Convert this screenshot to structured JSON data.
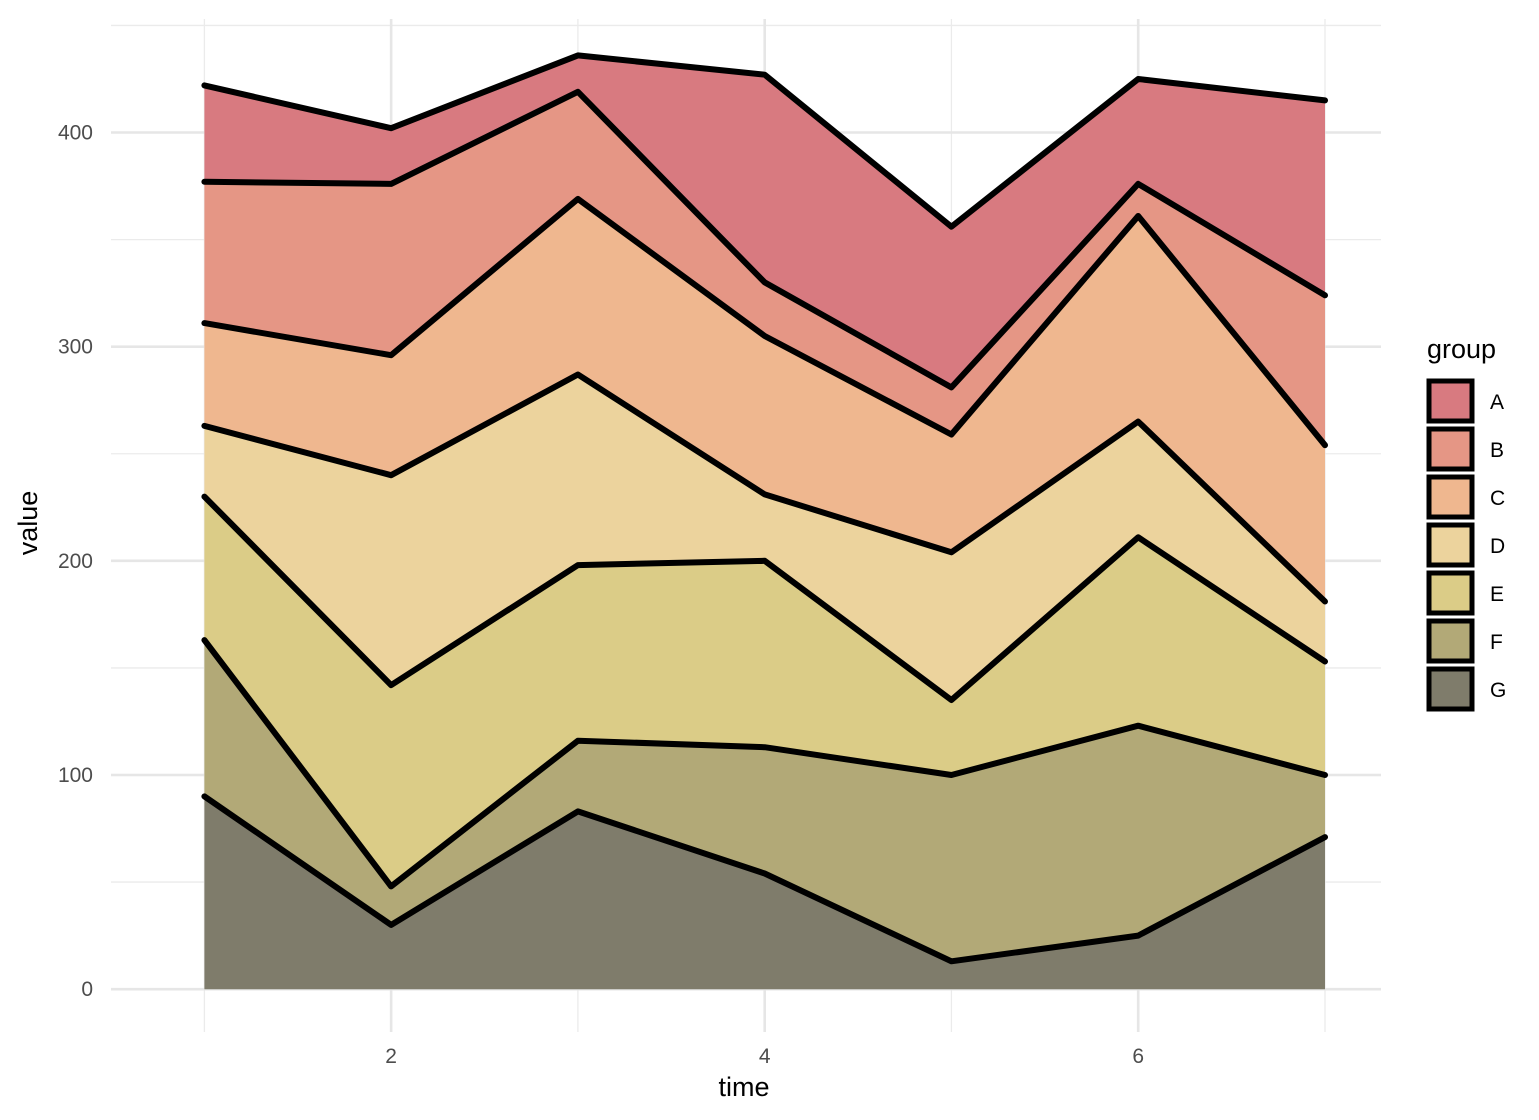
{
  "chart_data": {
    "type": "area",
    "stacked": true,
    "title": "",
    "xlabel": "time",
    "ylabel": "value",
    "x": [
      1,
      2,
      3,
      4,
      5,
      6,
      7
    ],
    "xlim": [
      0.5,
      7.3
    ],
    "ylim": [
      -20,
      453
    ],
    "x_ticks": [
      2,
      4,
      6
    ],
    "y_ticks": [
      0,
      100,
      200,
      300,
      400
    ],
    "grid": true,
    "legend": {
      "title": "group",
      "position": "right"
    },
    "outline_color": "#000000",
    "series": [
      {
        "name": "G",
        "color": "#7f7c6b",
        "values": [
          90,
          30,
          83,
          54,
          13,
          25,
          71
        ]
      },
      {
        "name": "F",
        "color": "#b2a977",
        "values": [
          73,
          18,
          33,
          59,
          87,
          98,
          29
        ]
      },
      {
        "name": "E",
        "color": "#dbcc87",
        "values": [
          67,
          94,
          82,
          87,
          35,
          88,
          53
        ]
      },
      {
        "name": "D",
        "color": "#ecd39d",
        "values": [
          33,
          98,
          89,
          31,
          69,
          54,
          28
        ]
      },
      {
        "name": "C",
        "color": "#efb78f",
        "values": [
          48,
          56,
          82,
          74,
          55,
          96,
          73
        ]
      },
      {
        "name": "B",
        "color": "#e59685",
        "values": [
          66,
          80,
          50,
          25,
          22,
          15,
          70
        ]
      },
      {
        "name": "A",
        "color": "#d87a80",
        "values": [
          45,
          26,
          17,
          97,
          75,
          49,
          91
        ]
      }
    ]
  }
}
